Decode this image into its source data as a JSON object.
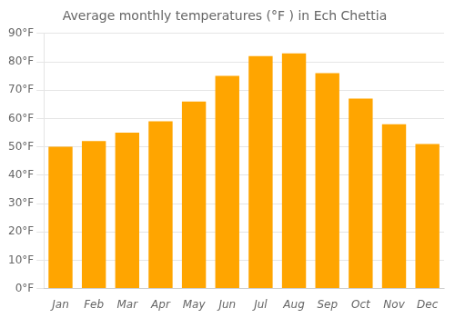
{
  "chart_data": {
    "type": "bar",
    "title": "Average monthly temperatures (°F ) in Ech Chettia",
    "categories": [
      "Jan",
      "Feb",
      "Mar",
      "Apr",
      "May",
      "Jun",
      "Jul",
      "Aug",
      "Sep",
      "Oct",
      "Nov",
      "Dec"
    ],
    "values": [
      50,
      52,
      55,
      59,
      66,
      75,
      82,
      83,
      76,
      67,
      58,
      51
    ],
    "color": "#FFA500",
    "ylim": [
      0,
      90
    ],
    "yticks": [
      {
        "value": 0,
        "label": "0°F"
      },
      {
        "value": 10,
        "label": "10°F"
      },
      {
        "value": 20,
        "label": "20°F"
      },
      {
        "value": 30,
        "label": "30°F"
      },
      {
        "value": 40,
        "label": "40°F"
      },
      {
        "value": 50,
        "label": "50°F"
      },
      {
        "value": 60,
        "label": "60°F"
      },
      {
        "value": 70,
        "label": "70°F"
      },
      {
        "value": 80,
        "label": "80°F"
      },
      {
        "value": 90,
        "label": "90°F"
      }
    ],
    "grid": true
  }
}
